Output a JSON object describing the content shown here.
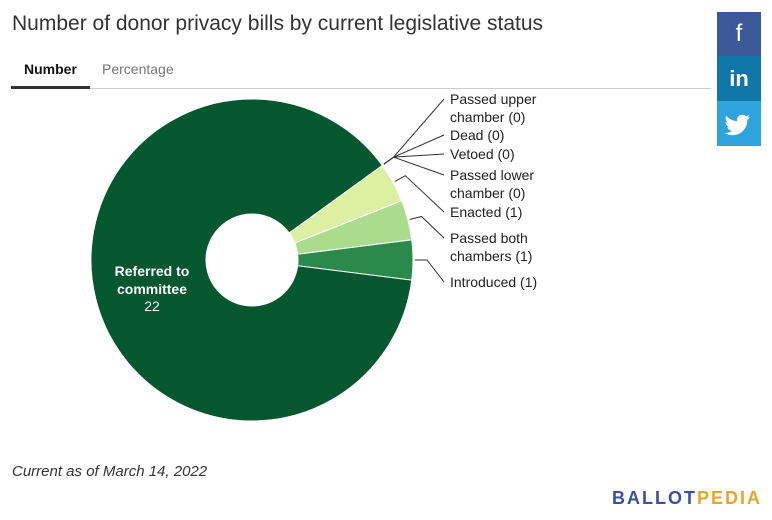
{
  "tabs": [
    "Number",
    "Percentage"
  ],
  "share": [
    "f",
    "in"
  ],
  "note": "Current as of March 14, 2022",
  "brand": [
    "BALLOT",
    "PEDIA"
  ],
  "chart_data": {
    "type": "donut",
    "title": "Number of donor privacy bills by current legislative status",
    "categories": [
      "Passed upper chamber",
      "Dead",
      "Vetoed",
      "Passed lower chamber",
      "Enacted",
      "Passed both chambers",
      "Introduced",
      "Referred to committee"
    ],
    "values": [
      0,
      0,
      0,
      0,
      1,
      1,
      1,
      22
    ],
    "value_labels": [
      "Passed upper chamber (0)",
      "Dead (0)",
      "Vetoed (0)",
      "Passed lower chamber (0)",
      "Enacted (1)",
      "Passed both chambers (1)",
      "Introduced (1)",
      null
    ],
    "colors": [
      "#f7fcb9",
      "#e5f5b0",
      "#d9f0a3",
      "#c2e699",
      "#dcf0a4",
      "#abdc8e",
      "#2a8a4b",
      "#04572f"
    ]
  }
}
